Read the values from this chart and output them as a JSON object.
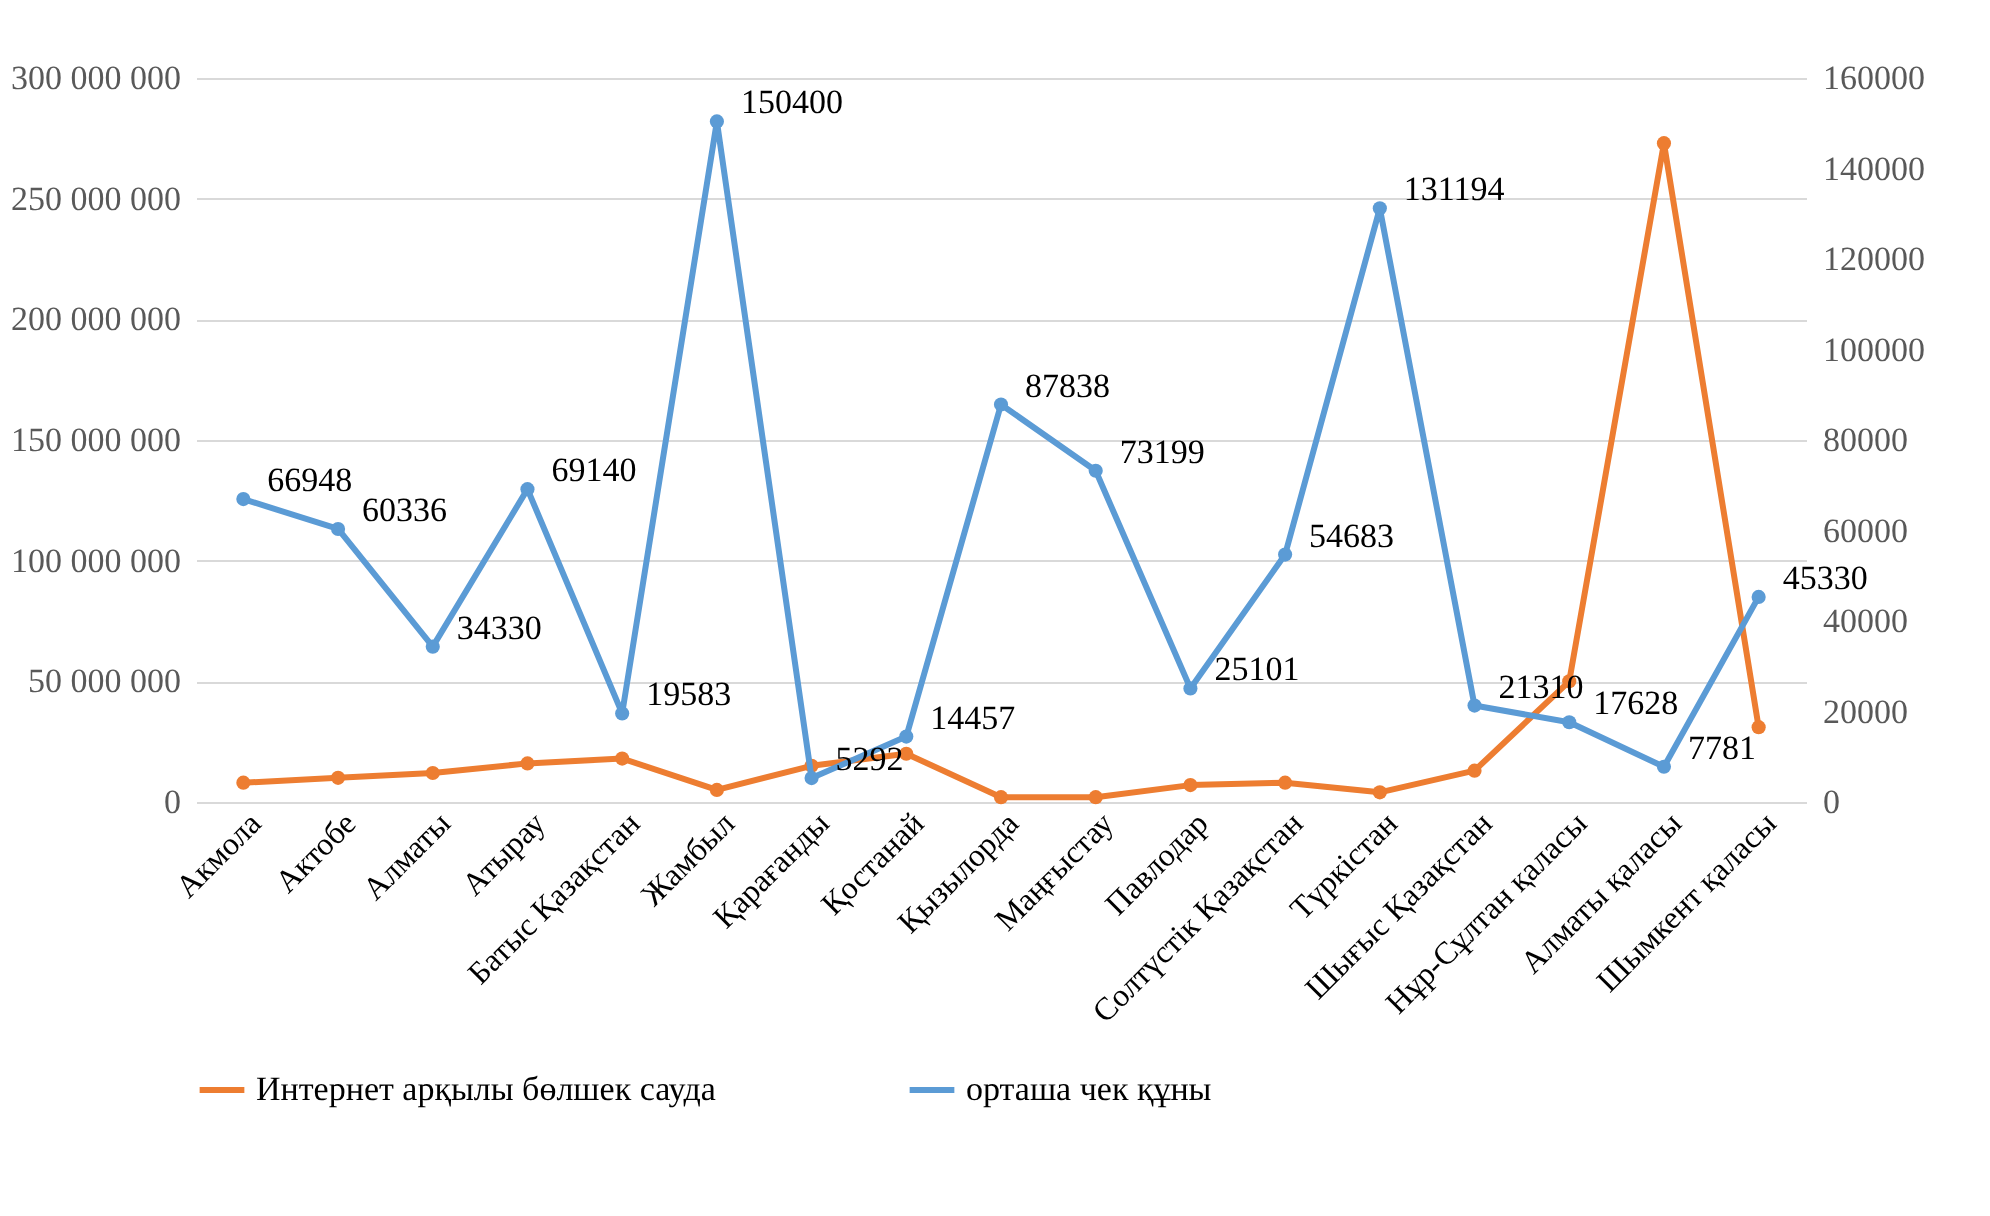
{
  "chart_data": {
    "type": "line",
    "categories": [
      "Акмола",
      "Актобе",
      "Алматы",
      "Атырау",
      "Батыс Қазақстан",
      "Жамбыл",
      "Қарағанды",
      "Қостанай",
      "Қызылорда",
      "Маңғыстау",
      "Павлодар",
      "Солтүстік Қазақстан",
      "Түркістан",
      "Шығыс Қазақстан",
      "Нұр-Сұлтан қаласы",
      "Алматы қаласы",
      "Шымкент қаласы"
    ],
    "series": [
      {
        "name": "Интернет арқылы бөлшек сауда",
        "color": "#ed7d31",
        "values": [
          8000000,
          10000000,
          12000000,
          16000000,
          18000000,
          5000000,
          15000000,
          20000000,
          2000000,
          2000000,
          7000000,
          8000000,
          4000000,
          13000000,
          50000000,
          273000000,
          31000000
        ]
      },
      {
        "name": "орташа чек құны",
        "color": "#5b9bd5",
        "axis": "y2",
        "values": [
          66948,
          60336,
          34330,
          69140,
          19583,
          150400,
          5292,
          14457,
          87838,
          73199,
          25101,
          54683,
          131194,
          21310,
          17628,
          7781,
          45330
        ],
        "value_labels": [
          "66948",
          "60336",
          "34330",
          "69140",
          "19583",
          "150400",
          "5292",
          "14457",
          "87838",
          "73199",
          "25101",
          "54683",
          "131194",
          "21310",
          "17628",
          "7781",
          "45330"
        ]
      }
    ],
    "ylim": [
      0,
      300000000
    ],
    "yticks": [
      0,
      {
        "value": 50000000,
        "label": "50 000 000"
      },
      {
        "value": 100000000,
        "label": "100 000 000"
      },
      {
        "value": 150000000,
        "label": "150 000 000"
      },
      {
        "value": 200000000,
        "label": "200 000 000"
      },
      {
        "value": 250000000,
        "label": "250 000 000"
      },
      {
        "value": 300000000,
        "label": "300 000 000"
      }
    ],
    "y2lim": [
      0,
      160000
    ],
    "y2ticks": [
      0,
      20000,
      40000,
      60000,
      80000,
      100000,
      120000,
      140000,
      160000
    ],
    "grid": "y",
    "legend": "bottom",
    "marker": "circle",
    "line_style": "solid"
  }
}
